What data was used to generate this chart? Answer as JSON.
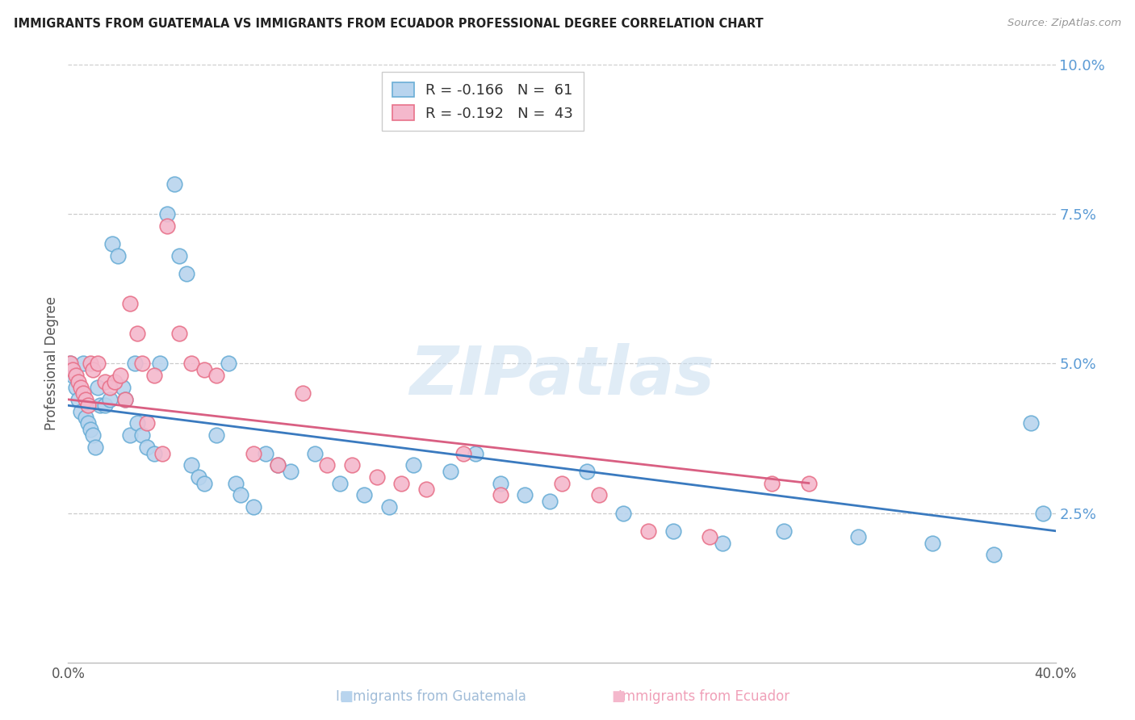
{
  "title": "IMMIGRANTS FROM GUATEMALA VS IMMIGRANTS FROM ECUADOR PROFESSIONAL DEGREE CORRELATION CHART",
  "source": "Source: ZipAtlas.com",
  "ylabel": "Professional Degree",
  "watermark": "ZIPatlas",
  "xlim": [
    0.0,
    0.4
  ],
  "ylim": [
    0.0,
    0.1
  ],
  "yticks": [
    0.0,
    0.025,
    0.05,
    0.075,
    0.1
  ],
  "ytick_labels": [
    "",
    "2.5%",
    "5.0%",
    "7.5%",
    "10.0%"
  ],
  "xticks": [
    0.0,
    0.1,
    0.2,
    0.3,
    0.4
  ],
  "xtick_labels": [
    "0.0%",
    "",
    "",
    "",
    "40.0%"
  ],
  "guatemala_color": "#b8d4ee",
  "ecuador_color": "#f4b8cc",
  "guatemala_edge": "#6aaed6",
  "ecuador_edge": "#e8728a",
  "regression_guatemala_color": "#3a7abf",
  "regression_ecuador_color": "#d95f82",
  "guatemala_N": 61,
  "ecuador_N": 43,
  "guatemala_label": "R = -0.166   N =  61",
  "ecuador_label": "R = -0.192   N =  43",
  "guat_x": [
    0.001,
    0.002,
    0.003,
    0.004,
    0.005,
    0.006,
    0.007,
    0.008,
    0.009,
    0.01,
    0.011,
    0.012,
    0.013,
    0.015,
    0.017,
    0.018,
    0.02,
    0.022,
    0.023,
    0.025,
    0.027,
    0.028,
    0.03,
    0.032,
    0.035,
    0.037,
    0.04,
    0.043,
    0.045,
    0.048,
    0.05,
    0.053,
    0.055,
    0.06,
    0.065,
    0.068,
    0.07,
    0.075,
    0.08,
    0.085,
    0.09,
    0.1,
    0.11,
    0.12,
    0.13,
    0.14,
    0.155,
    0.165,
    0.175,
    0.185,
    0.195,
    0.21,
    0.225,
    0.245,
    0.265,
    0.29,
    0.32,
    0.35,
    0.375,
    0.39,
    0.395
  ],
  "guat_y": [
    0.05,
    0.048,
    0.046,
    0.044,
    0.042,
    0.05,
    0.041,
    0.04,
    0.039,
    0.038,
    0.036,
    0.046,
    0.043,
    0.043,
    0.044,
    0.07,
    0.068,
    0.046,
    0.044,
    0.038,
    0.05,
    0.04,
    0.038,
    0.036,
    0.035,
    0.05,
    0.075,
    0.08,
    0.068,
    0.065,
    0.033,
    0.031,
    0.03,
    0.038,
    0.05,
    0.03,
    0.028,
    0.026,
    0.035,
    0.033,
    0.032,
    0.035,
    0.03,
    0.028,
    0.026,
    0.033,
    0.032,
    0.035,
    0.03,
    0.028,
    0.027,
    0.032,
    0.025,
    0.022,
    0.02,
    0.022,
    0.021,
    0.02,
    0.018,
    0.04,
    0.025
  ],
  "ecua_x": [
    0.001,
    0.002,
    0.003,
    0.004,
    0.005,
    0.006,
    0.007,
    0.008,
    0.009,
    0.01,
    0.012,
    0.015,
    0.017,
    0.019,
    0.021,
    0.023,
    0.025,
    0.028,
    0.03,
    0.032,
    0.035,
    0.038,
    0.04,
    0.045,
    0.05,
    0.055,
    0.06,
    0.075,
    0.085,
    0.095,
    0.105,
    0.115,
    0.125,
    0.135,
    0.145,
    0.16,
    0.175,
    0.2,
    0.215,
    0.235,
    0.26,
    0.285,
    0.3
  ],
  "ecua_y": [
    0.05,
    0.049,
    0.048,
    0.047,
    0.046,
    0.045,
    0.044,
    0.043,
    0.05,
    0.049,
    0.05,
    0.047,
    0.046,
    0.047,
    0.048,
    0.044,
    0.06,
    0.055,
    0.05,
    0.04,
    0.048,
    0.035,
    0.073,
    0.055,
    0.05,
    0.049,
    0.048,
    0.035,
    0.033,
    0.045,
    0.033,
    0.033,
    0.031,
    0.03,
    0.029,
    0.035,
    0.028,
    0.03,
    0.028,
    0.022,
    0.021,
    0.03,
    0.03
  ]
}
